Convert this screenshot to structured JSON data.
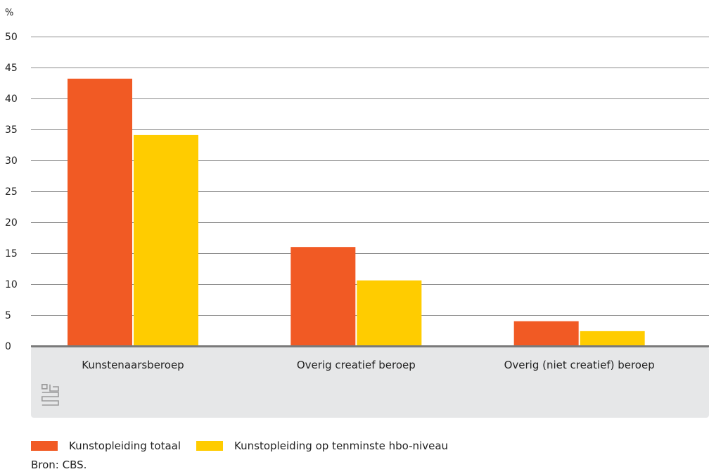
{
  "chart_data": {
    "type": "bar",
    "unit_label": "%",
    "categories": [
      "Kunstenaarsberoep",
      "Overig creatief beroep",
      "Overig (niet creatief) beroep"
    ],
    "series": [
      {
        "name": "Kunstopleiding totaal",
        "color": "#f15a24",
        "values": [
          43.2,
          16.0,
          4.0
        ]
      },
      {
        "name": "Kunstopleiding op tenminste hbo-niveau",
        "color": "#ffcc00",
        "values": [
          34.1,
          10.6,
          2.4
        ]
      }
    ],
    "y_ticks": [
      0,
      5,
      10,
      15,
      20,
      25,
      30,
      35,
      40,
      45,
      50
    ],
    "ylim": [
      0,
      50
    ],
    "grid": true,
    "legend_position": "bottom-left"
  },
  "source_text": "Bron: CBS.",
  "logo_text": "cbs"
}
